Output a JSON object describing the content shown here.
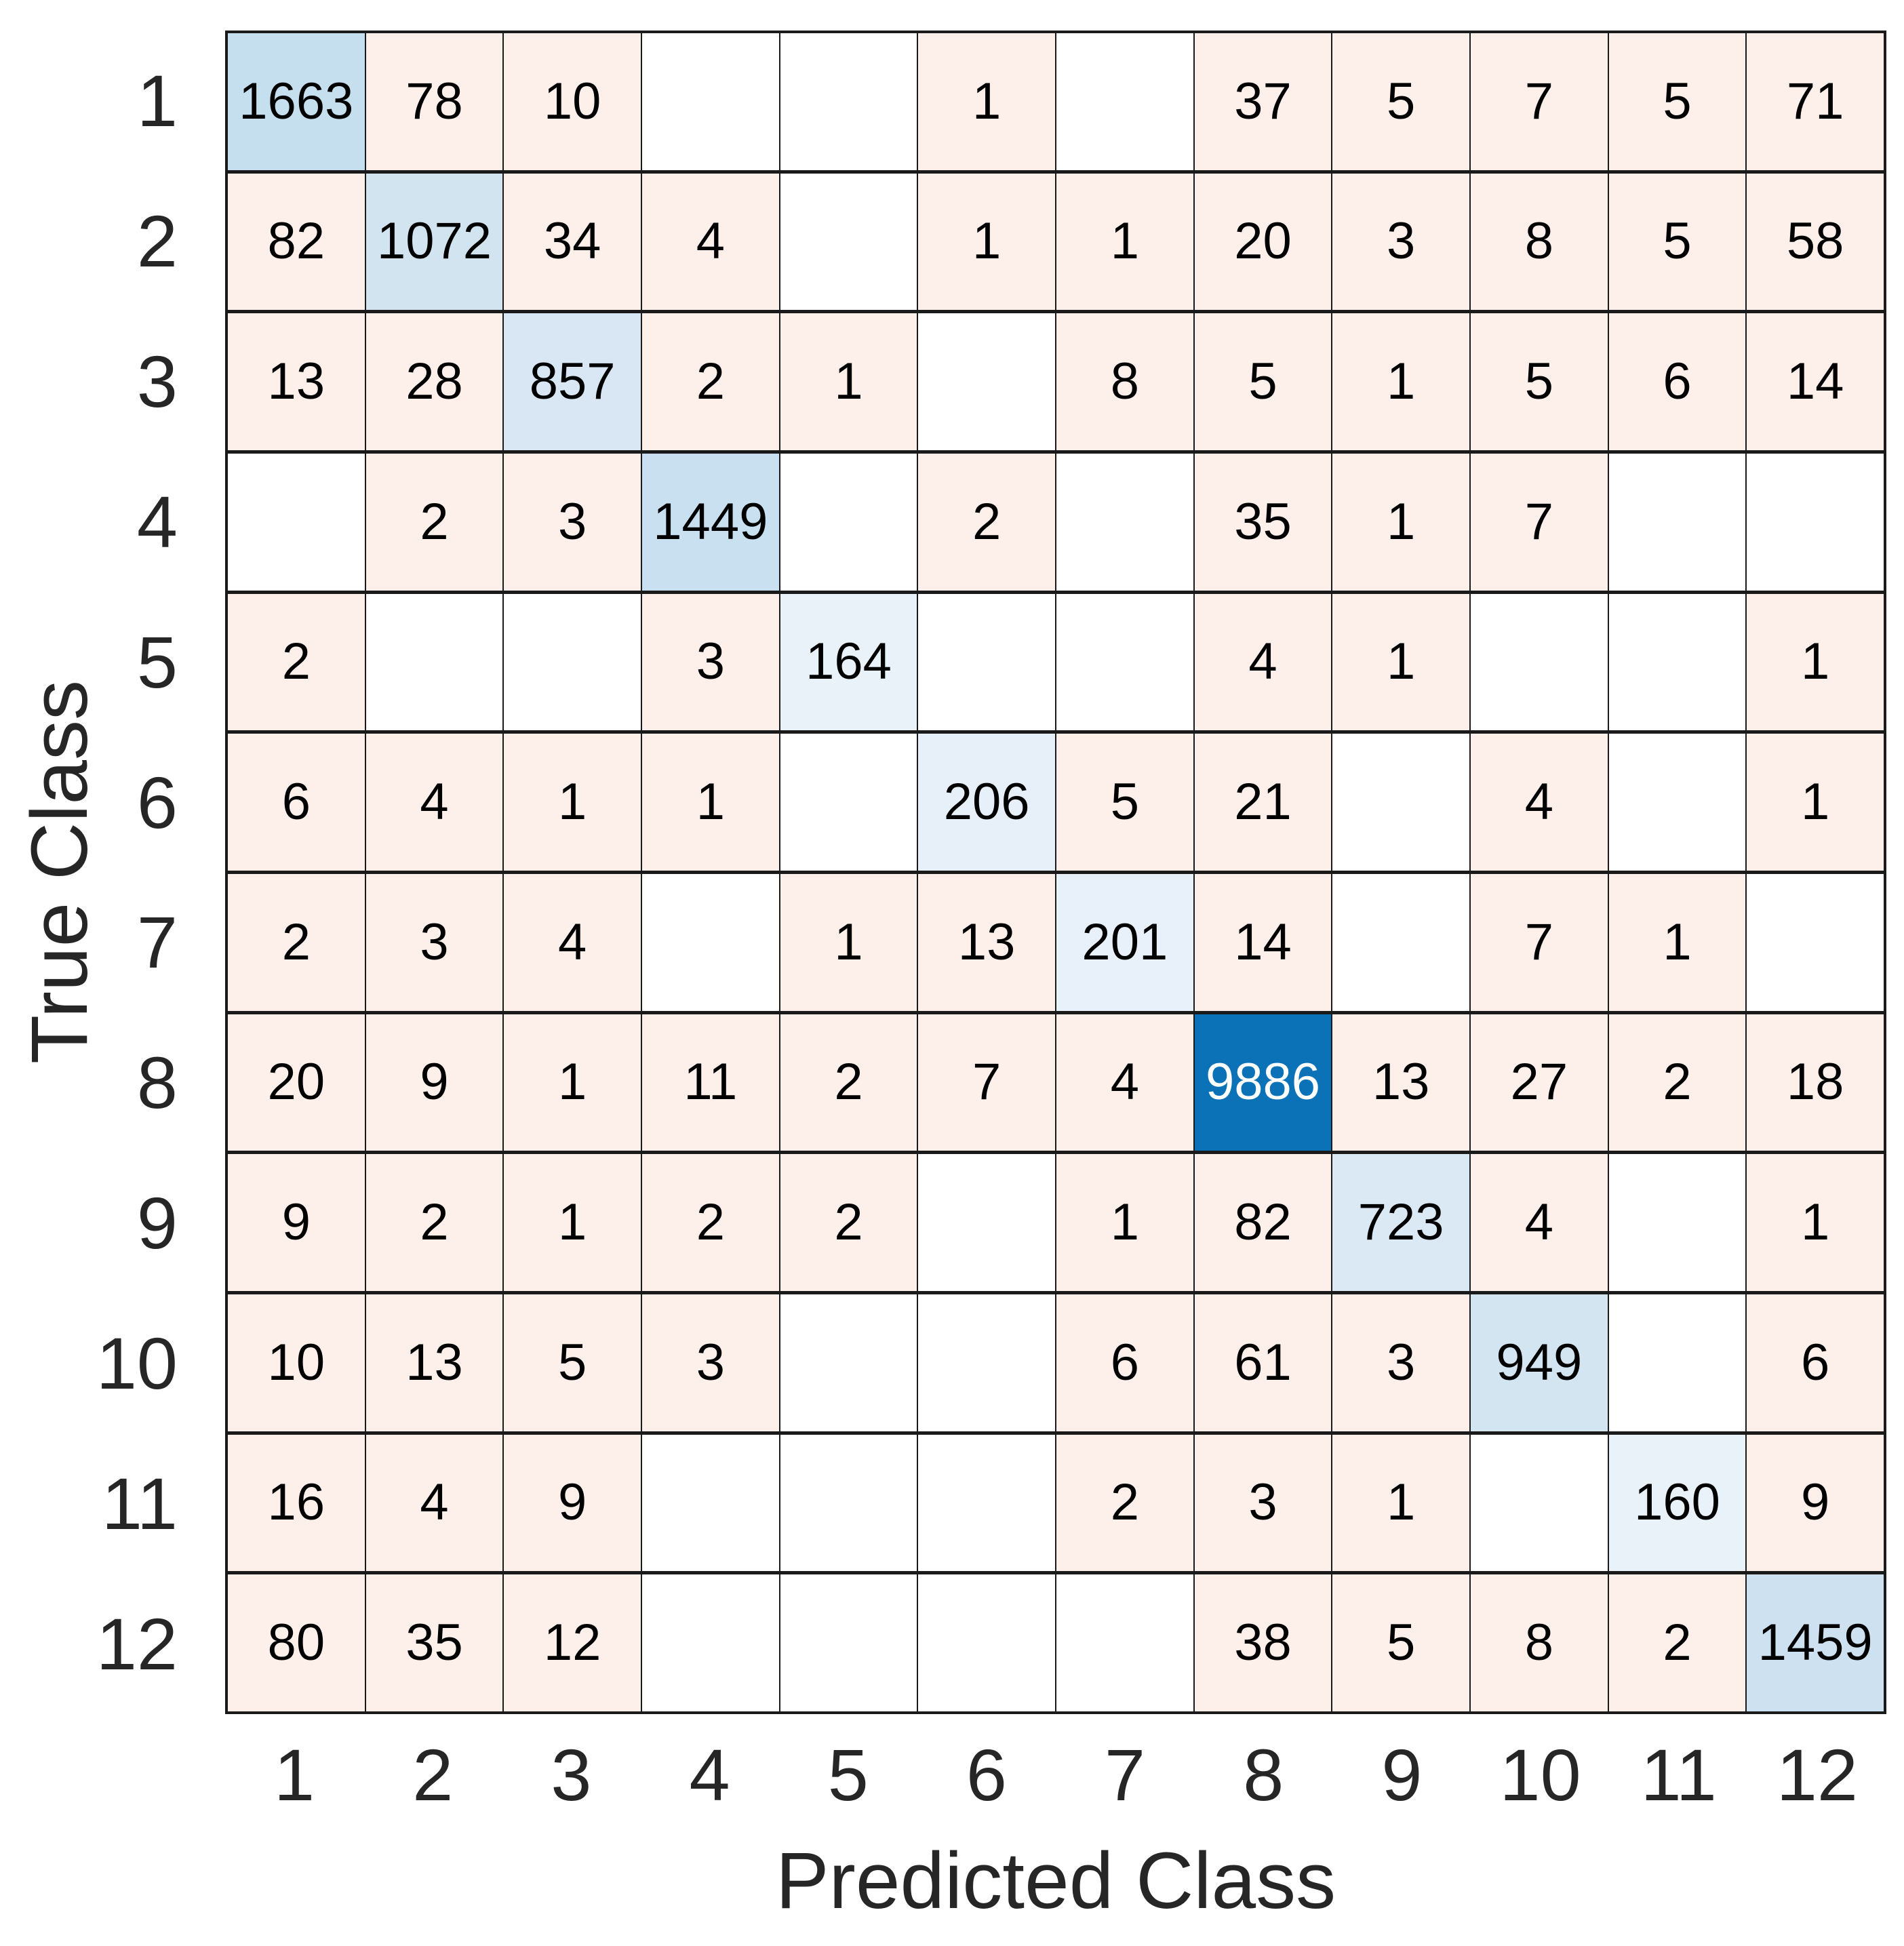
{
  "chart_data": {
    "type": "heatmap",
    "subtype": "confusion-matrix",
    "title": "",
    "xlabel": "Predicted Class",
    "ylabel": "True Class",
    "classes": [
      "1",
      "2",
      "3",
      "4",
      "5",
      "6",
      "7",
      "8",
      "9",
      "10",
      "11",
      "12"
    ],
    "matrix": [
      [
        1663,
        78,
        10,
        0,
        0,
        1,
        0,
        37,
        5,
        7,
        5,
        71
      ],
      [
        82,
        1072,
        34,
        4,
        0,
        1,
        1,
        20,
        3,
        8,
        5,
        58
      ],
      [
        13,
        28,
        857,
        2,
        1,
        0,
        8,
        5,
        1,
        5,
        6,
        14
      ],
      [
        0,
        2,
        3,
        1449,
        0,
        2,
        0,
        35,
        1,
        7,
        0,
        0
      ],
      [
        2,
        0,
        0,
        3,
        164,
        0,
        0,
        4,
        1,
        0,
        0,
        1
      ],
      [
        6,
        4,
        1,
        1,
        0,
        206,
        5,
        21,
        0,
        4,
        0,
        1
      ],
      [
        2,
        3,
        4,
        0,
        1,
        13,
        201,
        14,
        0,
        7,
        1,
        0
      ],
      [
        20,
        9,
        1,
        11,
        2,
        7,
        4,
        9886,
        13,
        27,
        2,
        18
      ],
      [
        9,
        2,
        1,
        2,
        2,
        0,
        1,
        82,
        723,
        4,
        0,
        1
      ],
      [
        10,
        13,
        5,
        3,
        0,
        0,
        6,
        61,
        3,
        949,
        0,
        6
      ],
      [
        16,
        4,
        9,
        0,
        0,
        0,
        2,
        3,
        1,
        0,
        160,
        9
      ],
      [
        80,
        35,
        12,
        0,
        0,
        0,
        0,
        38,
        5,
        8,
        2,
        1459
      ]
    ],
    "layout": {
      "grid": "on",
      "zero_cells_blank": true,
      "legend": "none"
    },
    "colors": {
      "diagonal_cell_colors": [
        "#c6dfee",
        "#d3e4f1",
        "#d8e7f3",
        "#c8e0ef",
        "#e9f1f9",
        "#e7f0f8",
        "#e8f1f9",
        "#0b72b8",
        "#dbe9f4",
        "#d4e5f2",
        "#e9f1f9",
        "#cde1f0"
      ],
      "offdiagonal_nonzero": "#fdf0eb",
      "zero_cell": "#ffffff",
      "grid_line": "#1a1a1a",
      "cell_text_dark": "#000000",
      "cell_text_light": "#ffffff",
      "axis_text": "#262626"
    }
  }
}
